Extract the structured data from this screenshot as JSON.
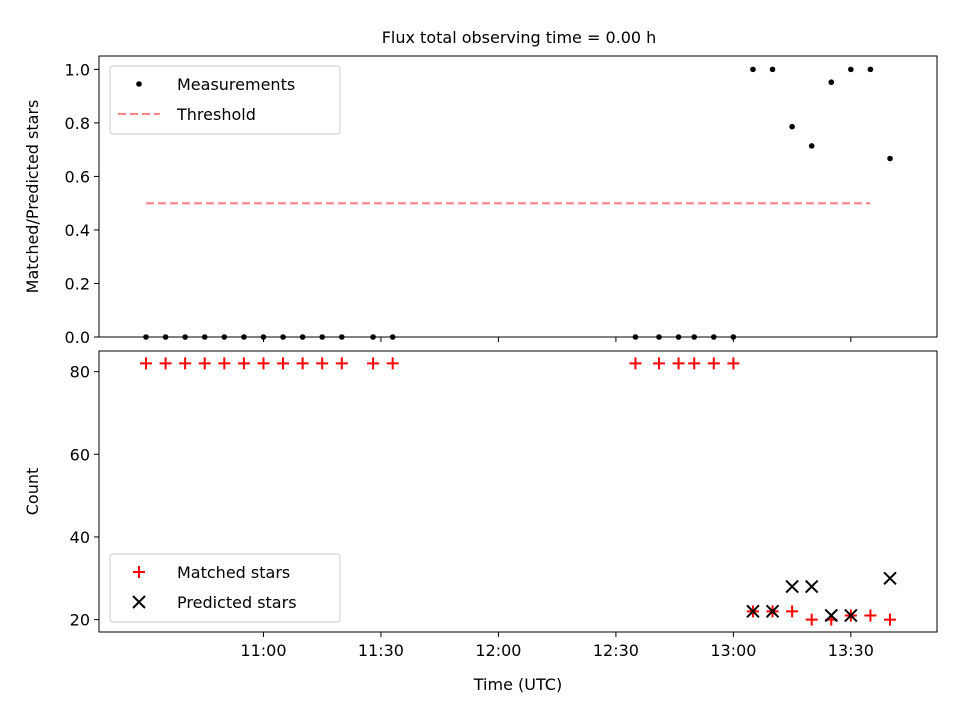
{
  "title": "Flux total observing time = 0.00 h",
  "chart_data": [
    {
      "type": "scatter",
      "ylabel": "Matched/Predicted stars",
      "ylim": [
        0,
        1.05
      ],
      "xlim": [
        "10:18",
        "13:52"
      ],
      "yticks": [
        "0.0",
        "0.2",
        "0.4",
        "0.6",
        "0.8",
        "1.0"
      ],
      "yticks_values": [
        0,
        0.2,
        0.4,
        0.6,
        0.8,
        1.0
      ],
      "legend_position": "upper-left",
      "series": [
        {
          "name": "Measurements",
          "marker": "dot",
          "color": "#000000",
          "x": [
            "10:30",
            "10:35",
            "10:40",
            "10:45",
            "10:50",
            "10:55",
            "11:00",
            "11:05",
            "11:10",
            "11:15",
            "11:20",
            "11:28",
            "11:33",
            "12:35",
            "12:41",
            "12:46",
            "12:50",
            "12:55",
            "13:00",
            "13:05",
            "13:10",
            "13:15",
            "13:20",
            "13:25",
            "13:30",
            "13:35",
            "13:40"
          ],
          "values": [
            0,
            0,
            0,
            0,
            0,
            0,
            0,
            0,
            0,
            0,
            0,
            0,
            0,
            0,
            0,
            0,
            0,
            0,
            0,
            1.0,
            1.0,
            0.786,
            0.714,
            0.952,
            1.0,
            1.0,
            0.667
          ]
        },
        {
          "name": "Threshold",
          "marker": "dashed-line",
          "color": "#ff7f7f",
          "x": [
            "10:30",
            "13:35"
          ],
          "values": [
            0.5,
            0.5
          ]
        }
      ]
    },
    {
      "type": "scatter",
      "xlabel": "Time (UTC)",
      "ylabel": "Count",
      "ylim": [
        17,
        85
      ],
      "xlim": [
        "10:18",
        "13:52"
      ],
      "yticks": [
        "20",
        "40",
        "60",
        "80"
      ],
      "yticks_values": [
        20,
        40,
        60,
        80
      ],
      "xticks": [
        "11:00",
        "11:30",
        "12:00",
        "12:30",
        "13:00",
        "13:30"
      ],
      "legend_position": "lower-left",
      "series": [
        {
          "name": "Matched stars",
          "marker": "plus",
          "color": "#ff0000",
          "x": [
            "10:30",
            "10:35",
            "10:40",
            "10:45",
            "10:50",
            "10:55",
            "11:00",
            "11:05",
            "11:10",
            "11:15",
            "11:20",
            "11:28",
            "11:33",
            "12:35",
            "12:41",
            "12:46",
            "12:50",
            "12:55",
            "13:00",
            "13:05",
            "13:10",
            "13:15",
            "13:20",
            "13:25",
            "13:30",
            "13:35",
            "13:40"
          ],
          "values": [
            82,
            82,
            82,
            82,
            82,
            82,
            82,
            82,
            82,
            82,
            82,
            82,
            82,
            82,
            82,
            82,
            82,
            82,
            82,
            22,
            22,
            22,
            20,
            20,
            21,
            21,
            20
          ]
        },
        {
          "name": "Predicted stars",
          "marker": "x",
          "color": "#000000",
          "x": [
            "13:05",
            "13:10",
            "13:15",
            "13:20",
            "13:25",
            "13:30",
            "13:40"
          ],
          "values": [
            22,
            22,
            28,
            28,
            21,
            21,
            30
          ]
        }
      ]
    }
  ]
}
